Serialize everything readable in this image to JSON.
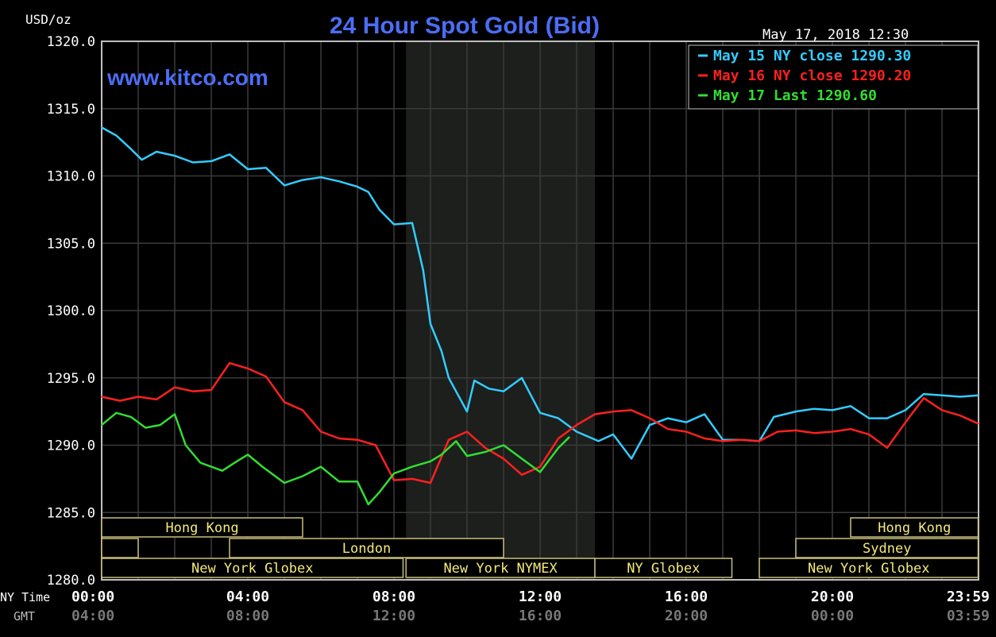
{
  "chart_data": {
    "type": "line",
    "title": "24 Hour Spot Gold (Bid)",
    "ylabel": "USD/oz",
    "watermark": "www.kitco.com",
    "timestamp": "May 17, 2018 12:30",
    "ylim": [
      1280,
      1320
    ],
    "y_ticks": [
      "1320.0",
      "1315.0",
      "1310.0",
      "1305.0",
      "1300.0",
      "1295.0",
      "1290.0",
      "1285.0",
      "1280.0"
    ],
    "x_row_labels": [
      "NY Time",
      "GMT"
    ],
    "x_ticks": [
      {
        "ny": "00:00",
        "gmt": "04:00"
      },
      {
        "ny": "04:00",
        "gmt": "08:00"
      },
      {
        "ny": "08:00",
        "gmt": "12:00"
      },
      {
        "ny": "12:00",
        "gmt": "16:00"
      },
      {
        "ny": "16:00",
        "gmt": "20:00"
      },
      {
        "ny": "20:00",
        "gmt": "00:00"
      },
      {
        "ny": "23:59",
        "gmt": "03:59"
      }
    ],
    "shaded_session_hours": [
      8.33,
      13.5
    ],
    "grid": true,
    "legend_position": "top-right",
    "series": [
      {
        "name": "May 15 NY close 1290.30",
        "color": "#33ccff",
        "points": [
          [
            0,
            1313.6
          ],
          [
            0.4,
            1313
          ],
          [
            0.8,
            1312
          ],
          [
            1.1,
            1311.2
          ],
          [
            1.5,
            1311.8
          ],
          [
            2,
            1311.5
          ],
          [
            2.5,
            1311
          ],
          [
            3,
            1311.1
          ],
          [
            3.5,
            1311.6
          ],
          [
            4,
            1310.5
          ],
          [
            4.5,
            1310.6
          ],
          [
            5,
            1309.3
          ],
          [
            5.5,
            1309.7
          ],
          [
            6,
            1309.9
          ],
          [
            6.5,
            1309.6
          ],
          [
            7,
            1309.2
          ],
          [
            7.3,
            1308.8
          ],
          [
            7.6,
            1307.5
          ],
          [
            8,
            1306.4
          ],
          [
            8.5,
            1306.5
          ],
          [
            8.8,
            1303
          ],
          [
            9,
            1299
          ],
          [
            9.3,
            1297
          ],
          [
            9.5,
            1295
          ],
          [
            10,
            1292.5
          ],
          [
            10.2,
            1294.8
          ],
          [
            10.6,
            1294.2
          ],
          [
            11,
            1294
          ],
          [
            11.5,
            1295
          ],
          [
            12,
            1292.4
          ],
          [
            12.5,
            1292
          ],
          [
            13,
            1291
          ],
          [
            13.6,
            1290.3
          ],
          [
            14,
            1290.8
          ],
          [
            14.5,
            1289
          ],
          [
            15,
            1291.5
          ],
          [
            15.5,
            1292
          ],
          [
            16,
            1291.7
          ],
          [
            16.5,
            1292.3
          ],
          [
            17,
            1290.4
          ],
          [
            17.5,
            1290.4
          ],
          [
            18,
            1290.3
          ],
          [
            18.4,
            1292.1
          ],
          [
            19,
            1292.5
          ],
          [
            19.5,
            1292.7
          ],
          [
            20,
            1292.6
          ],
          [
            20.5,
            1292.9
          ],
          [
            21,
            1292
          ],
          [
            21.5,
            1292
          ],
          [
            22,
            1292.6
          ],
          [
            22.5,
            1293.8
          ],
          [
            23,
            1293.7
          ],
          [
            23.5,
            1293.6
          ],
          [
            23.99,
            1293.7
          ]
        ]
      },
      {
        "name": "May 16 NY close 1290.20",
        "color": "#ff2020",
        "points": [
          [
            0,
            1293.6
          ],
          [
            0.5,
            1293.3
          ],
          [
            1,
            1293.6
          ],
          [
            1.5,
            1293.4
          ],
          [
            2,
            1294.3
          ],
          [
            2.5,
            1294
          ],
          [
            3,
            1294.1
          ],
          [
            3.5,
            1296.1
          ],
          [
            4,
            1295.7
          ],
          [
            4.5,
            1295.1
          ],
          [
            5,
            1293.2
          ],
          [
            5.5,
            1292.6
          ],
          [
            6,
            1291
          ],
          [
            6.5,
            1290.5
          ],
          [
            7,
            1290.4
          ],
          [
            7.5,
            1290
          ],
          [
            8,
            1287.4
          ],
          [
            8.5,
            1287.5
          ],
          [
            9,
            1287.2
          ],
          [
            9.5,
            1290.4
          ],
          [
            10,
            1291
          ],
          [
            10.5,
            1289.8
          ],
          [
            11,
            1289
          ],
          [
            11.5,
            1287.8
          ],
          [
            12,
            1288.4
          ],
          [
            12.5,
            1290.5
          ],
          [
            13,
            1291.5
          ],
          [
            13.5,
            1292.3
          ],
          [
            14,
            1292.5
          ],
          [
            14.5,
            1292.6
          ],
          [
            15,
            1292
          ],
          [
            15.5,
            1291.2
          ],
          [
            16,
            1291
          ],
          [
            16.5,
            1290.5
          ],
          [
            17,
            1290.3
          ],
          [
            17.5,
            1290.4
          ],
          [
            18,
            1290.3
          ],
          [
            18.5,
            1291
          ],
          [
            19,
            1291.1
          ],
          [
            19.5,
            1290.9
          ],
          [
            20,
            1291
          ],
          [
            20.5,
            1291.2
          ],
          [
            21,
            1290.8
          ],
          [
            21.5,
            1289.8
          ],
          [
            22,
            1291.7
          ],
          [
            22.5,
            1293.5
          ],
          [
            23,
            1292.6
          ],
          [
            23.5,
            1292.2
          ],
          [
            23.99,
            1291.6
          ]
        ]
      },
      {
        "name": "May 17 Last 1290.60",
        "color": "#33dd33",
        "points": [
          [
            0,
            1291.5
          ],
          [
            0.4,
            1292.4
          ],
          [
            0.8,
            1292.1
          ],
          [
            1.2,
            1291.3
          ],
          [
            1.6,
            1291.5
          ],
          [
            2,
            1292.3
          ],
          [
            2.3,
            1290
          ],
          [
            2.7,
            1288.7
          ],
          [
            3.3,
            1288.1
          ],
          [
            3.7,
            1288.8
          ],
          [
            4,
            1289.3
          ],
          [
            4.4,
            1288.4
          ],
          [
            5,
            1287.2
          ],
          [
            5.5,
            1287.7
          ],
          [
            6,
            1288.4
          ],
          [
            6.5,
            1287.3
          ],
          [
            7,
            1287.3
          ],
          [
            7.3,
            1285.6
          ],
          [
            7.6,
            1286.5
          ],
          [
            8,
            1287.9
          ],
          [
            8.5,
            1288.4
          ],
          [
            9,
            1288.8
          ],
          [
            9.3,
            1289.3
          ],
          [
            9.7,
            1290.3
          ],
          [
            10,
            1289.2
          ],
          [
            10.5,
            1289.5
          ],
          [
            11,
            1290
          ],
          [
            11.5,
            1289
          ],
          [
            12,
            1288
          ],
          [
            12.5,
            1289.8
          ],
          [
            12.8,
            1290.6
          ]
        ]
      }
    ],
    "sessions": [
      {
        "row": 0,
        "label": "Hong Kong",
        "start": 0,
        "end": 5.5
      },
      {
        "row": 0,
        "label": "Hong Kong",
        "start": 20.5,
        "end": 23.99
      },
      {
        "row": 1,
        "label": "",
        "start": 0,
        "end": 1
      },
      {
        "row": 1,
        "label": "London",
        "start": 3.5,
        "end": 11
      },
      {
        "row": 1,
        "label": "Sydney",
        "start": 19,
        "end": 23.99
      },
      {
        "row": 2,
        "label": "New York Globex",
        "start": 0,
        "end": 8.25
      },
      {
        "row": 2,
        "label": "New York NYMEX",
        "start": 8.33,
        "end": 13.5
      },
      {
        "row": 2,
        "label": "NY Globex",
        "start": 13.5,
        "end": 17.25
      },
      {
        "row": 2,
        "label": "New York Globex",
        "start": 18,
        "end": 23.99
      }
    ]
  }
}
